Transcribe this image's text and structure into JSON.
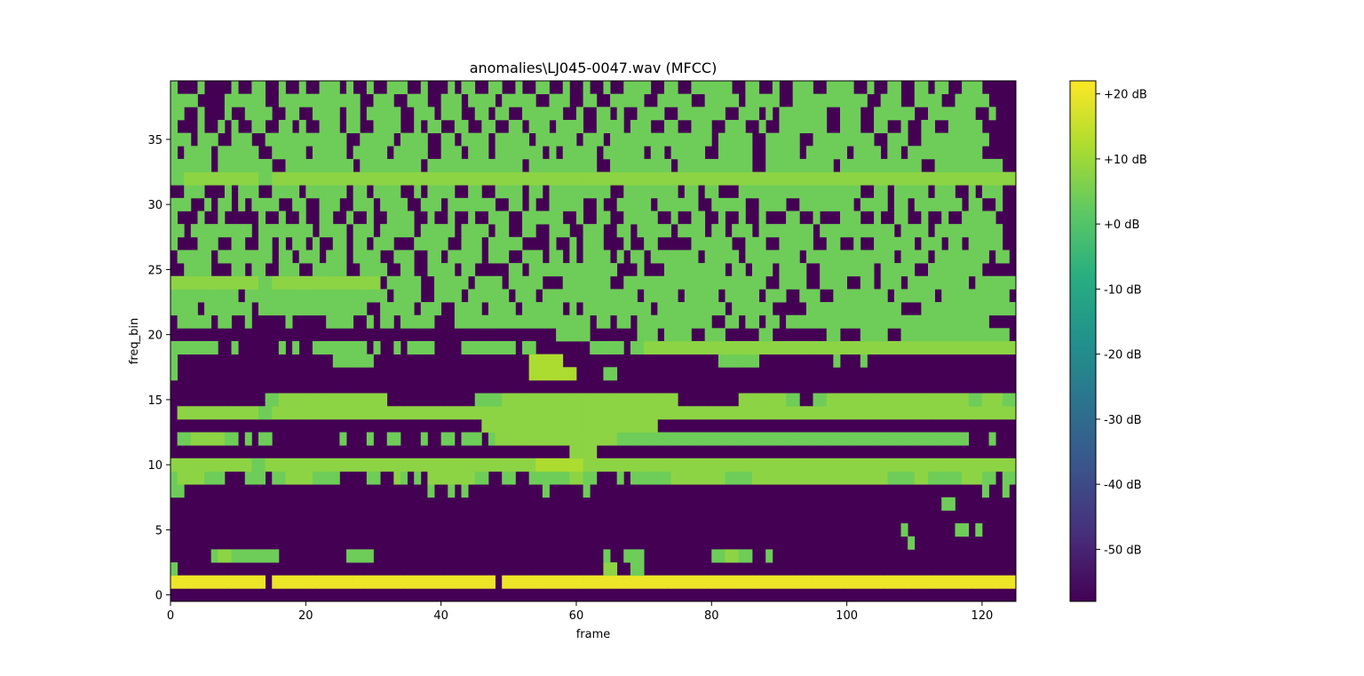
{
  "chart_data": {
    "type": "heatmap",
    "title": "anomalies\\LJ045-0047.wav (MFCC)",
    "xlabel": "frame",
    "ylabel": "freq_bin",
    "xlim": [
      0,
      125
    ],
    "ylim": [
      0,
      40
    ],
    "x_ticks": [
      0,
      20,
      40,
      60,
      80,
      100,
      120
    ],
    "y_ticks": [
      0,
      5,
      10,
      15,
      20,
      25,
      30,
      35
    ],
    "colormap": "viridis",
    "colorbar": {
      "range": [
        -58,
        22
      ],
      "ticks": [
        20,
        10,
        0,
        -10,
        -20,
        -30,
        -40,
        -50
      ],
      "tick_labels": [
        "+20 dB",
        "+10 dB",
        "+0 dB",
        "-10 dB",
        "-20 dB",
        "-30 dB",
        "-40 dB",
        "-50 dB"
      ]
    },
    "n_frames": 125,
    "n_bins": 40,
    "value_legend": {
      ".": -58,
      "a": 4,
      "b": 8,
      "c": 12,
      "d": 16,
      "e": 20
    },
    "rows": [
      "...............................................................................................................................",
      "eeeeeeeeeeeeee.eeeeeeeeeeeeeeeeeeeeeeeeeeeeeeeee.eeeeeeeeeeeeeeeeeeeeeeeeeeeeeeeeeeeeeeeeeeeeeeeeeeeeeeeeeeeeeeeeeeeeeeeeeeeeeeeeeeeeeee",
      "a...............................................................bb..aa.................................................................",
      "......abbaaaaaaa..........aaaa..................................a..aaa..........aabbaa..a.......................................",
      ".............................................................................................................a.............",
      "............................................................................................................a.......aa.a...",
      "...............................................................................................................................",
      "..................................................................................................................aa......................",
      "aa....................................a..a.a...........a.....a..........................................................a..a.....",
      "abbbbaaa...aaa.aabbbbaaaa....aa..ba.a.bbbbbbbaa..aa..aaaaaabbaa...a.aaaaaabbbbbbbbaaaabbbbbbbbbbbbbbbbbbbbaaaabbaaaaabbbaa.aaabbbbbbbbbbbbbbbbbbbbbbbbbbbbbbbbbbbbbbbbbbbb",
      "bbbbbbbbbbbbaabbbbbbbbbbbbbbbbbbbbbbbbbbbbbbbbbbbbbbbbcccccccbbbbbbbbbbbbbbbbbbbbbbbbbbbbbbbbbbbbbbbbbbbbbbbbbbbbbbbbbbbbbbbbbbbbbbbbbbbbbbbb",
      "...........................................................bbbb.............................................................",
      ".aabbbbbaa.a.aa..........a...a..aa...a..aa.aaa.abbbbbbbbbbbbbbbbbbaaaaaaaaaaaaaaaaaaaaaaaaaaaaaaaaaaaaaaaaaaaaaaaaaaaa...a........",
      "..............................................bbbbbbbbbbbbbbbbbbbbbbbbbb.......................................................",
      ".bbbbbbbbbbbbaabbbbbbbbbbbbbbbbbbbbbbbbbbbbbbbbbbbbbbbbbbbbbbbbbbbbbbbbbbbbbbbbbbbbbbbbbbbbbbbbbbbbbbbbbbbbbbbbbbbbbbbbbbbbbbbb",
      "..............aabbbbbbbbbbbbbbbb.............aaaabbbbbbbbbbbbbbbbbbbbbbbbbb.........bbbbbbbaa..aabbbbbbbbbbbbbbbbbbbbbaabbbaaabbbbbbb",
      "...............................................................................................................................",
      "a....................................................ccccccc....aa..............................................................",
      "a.......................aaaaaa.......................ccccc.......................aaaaaa...........a...a....................",
      "aaaaaaa..a......a.a..aaaaaaaa.a..a.aaaa....aaaaaaaa.aa........aaaaa.aabbbbbbbbbbbbbbbbbbbbbbbbbbbbbbbbbbbbbbbbbbbbbbbbbbbbbbbbbbbb",
      ".........................................................aaaaa.......aaa.aaaa..aaa.....aa........aa...aaaa..aaaaaaaaaaaaaaaa.",
      ".aaaaa.aa..a.....a.....aaaa..a.aa.aaaaa...aaaaaaaaaaaaaaaaaaaa.aa.aa.aaaaaaaaaaa..aa.aa.aa.aaaaaaaaaaaaaaaaaaaaaaaaaaaaaa",
      "aaaa.aaaaaaa.aaaaaaaaaaaaaaaa..aaaaa.aaa..aaaa.aaaa.aaaaaa.a.aaaaaaaaaa.aaaaaaaaaa.aaaaaa.....aaaaaaaaaaaaaa...aaaaaaaaaaaaaa",
      "aaaaaaaaaa.aaaaaaaaaaaaaaaaaaaaa.aaaa..aaaa.aaaaaa.aaa.aaaaaaaaaaaaaa.aaaaa.aaaaa.aaaaa.aaa..aaa..aaaaaaaa.aaaaaa.aaaaaaaaaa",
      "bbbbbbbbbbbbbaabbbbbbbbbbbbbbbb.aaaaa..aaaaa.aaaa.aaaaa...aaaaaaa..aaaaaaaaaaaaaaaaaaaaa..aaaa..aaaa..aa.aaa.aaaaaaaaa.aaaaaa",
      "..aaaa...aa.aa..aaa..aaaaa..aaaa..aa..aaaa.aa.....aa.aaaaaaaaaaaaa...a...aaaaaaaaa.aa.aaa.aaaa..aaaaaaaa.aaaaa..aaaaaaaa....",
      ".aaaaa.aaaaaaaa.aa.aaa.aaa.aaaa..aaa..aa.aaaaa.aaa..aaa.aa.a.aaaa.a.aa.aaaaaaa.aaaaa.aaaaaaaa.aaaaaaaaaaaaa.aaaa.aaaaaaaa.aa",
      "a...aaa..aa..aa.a.aa.a..aa.aa.aaa...aaaaa..aaa.aaaaa....a..a.aaa...a..aa.....aaaaaa..aaa..aaaaa..aa..a..aaaaaa.aaa.aa.aaaaa",
      "aa.aaaaaaaaa.aaaaaaaa.aaaa.aaa.aaaaa.aaaaa.aaaa.aa..aa..aaa..aaa..aa.aaaaa.aaaa.aa.aaa.aaaaaaaa.aaaaaaaaaaa.aaaa.aaaaaaaaaa",
      "a...a..a.....a..a..a..aa..a..a..aaaa..a..a..a..aaa..aaaaaa..a..aa..aaaaa..a..aa..a..a..a...aa..a...aaa..a..aa..a..a..aaaaa",
      "aaa..a.aa.a.aaaa..aa..aaa..aaa.aaaa..aaa.aaaaaaa..aa.a..aaaaa..a..aaaaa.aaaaaa..aaaaa..aaaa..aaaaaaaa.aaaa.aa.aaaaaaa.aa..a",
      "..aaa...a.aaa..aaaa.aaaaaa.aa.aaaa..a.aaaa..aa..aaaa.aa.aaaaaaaaa..aaaaaaaa.aa.aa...aaaaaaaaaaaaaaaaaa..aa.aaaaa.aaa..a.aaa",
      "aabbbbbbbbbbbaabbbbbbbbbbbbbbbbbbbbbbbbbbbbbbbbbbbbbbbbbbbbbbbbbbbbbbbbbbbbbbbbbbbbbbbbbbbbbbbbbbbbbbbbbbbbbbbbbbbbbbbbbbbbbbbb",
      "aaaaaa.aaaaaaaa..aaaaaaaaaa.aaaaaaaaa.aaaaaaaaaaaaaa.aaaaaaaaaa..aaaaaaaaa.aaaaaaaaaaa..aaaaaaaaaa.aaaaaaaaaaaa..aaaaaaaaaa",
      "a.aaaa.aaaaaa..aaaaa.aaaaa.aaaaa.aaaaa..aaa.aaa.aaaaaaa.a.aaaaa.aaaaaa.aa.aaaaa..aaaaa..aaaaa.aaaaaa.aaaa.aa.aaaaaaaaaaa",
      "aaa.aaa..aaa..aaaaaaaaaaaa..aaaaa.aaaa..aa.aaaa.aaaaa.aaaaaa.aaa.aaaaaaaaaaaaaaa.aaaaa..aaaaa..aaaaaaaaa..aaa..aaaaaaaaaa",
      "a...a..a.a..aa..aa.a..aaa.aa..aaaa..a.aa..aa..aa..aa.aaa.aaaa..aaaa.aaa..aa..aaa..aaa..a..aaaaaaa..aaa..aa..a..aa..aaaaa",
      "aa..a...a..aaaa..aa..aaaa.aa.aaaaa..aaa.aaa..aa.aa..aaaaaa..a..aa.a..aaaa..aaaaaaa..aaa.a.aaaaaaa..aaa..aaaaaa..aaaaaaa..a",
      "aaaa....aaaaaa..aaaaaaaaaaaa..aaa..aaa..aaa.aaaa.aaaaa..aaa..aa..aaaaa..aaaaa..aaaaa.aaaaa..aaaaaaaaaaa..aaa..aaaa..aaaaa",
      "a...a....a..aa..a..a..aaa.a..a..aaa..a...a.aa..aa..a..aa..a..a..a..aaaa..aa..aaaaaa..aa..a..aaa..aaaa..a..aa..aa.aa..aaa."
    ]
  }
}
